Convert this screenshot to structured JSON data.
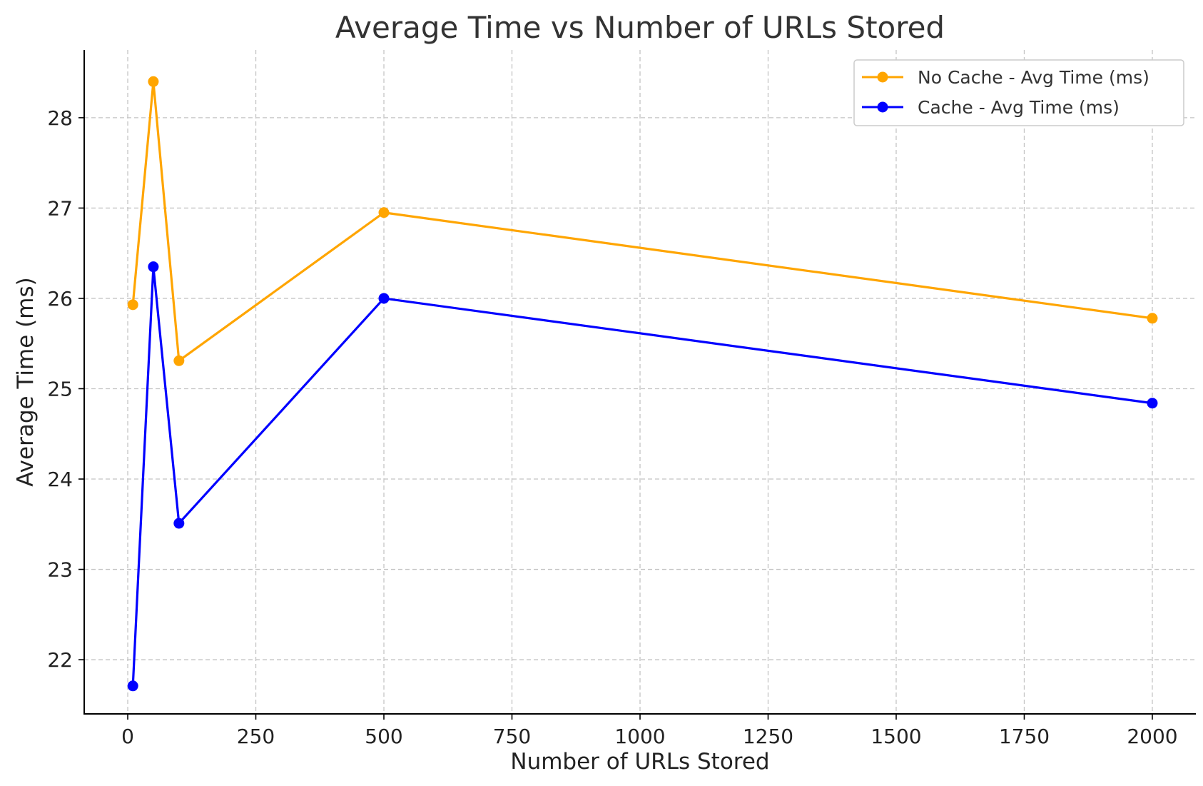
{
  "chart_data": {
    "type": "line",
    "title": "Average Time vs Number of URLs Stored",
    "xlabel": "Number of URLs Stored",
    "ylabel": "Average Time (ms)",
    "xlim": [
      -85,
      2085
    ],
    "ylim": [
      21.4,
      28.75
    ],
    "xticks": [
      0,
      250,
      500,
      750,
      1000,
      1250,
      1500,
      1750,
      2000
    ],
    "yticks": [
      22,
      23,
      24,
      25,
      26,
      27,
      28
    ],
    "grid": true,
    "legend_position": "top-right",
    "x": [
      10,
      50,
      100,
      500,
      2000
    ],
    "series": [
      {
        "name": "No Cache - Avg Time (ms)",
        "color": "#ffa500",
        "marker": "circle",
        "values": [
          25.93,
          28.4,
          25.31,
          26.95,
          25.78
        ]
      },
      {
        "name": "Cache - Avg Time (ms)",
        "color": "#0000ff",
        "marker": "circle",
        "values": [
          21.71,
          26.35,
          23.51,
          26.0,
          24.84
        ]
      }
    ]
  }
}
